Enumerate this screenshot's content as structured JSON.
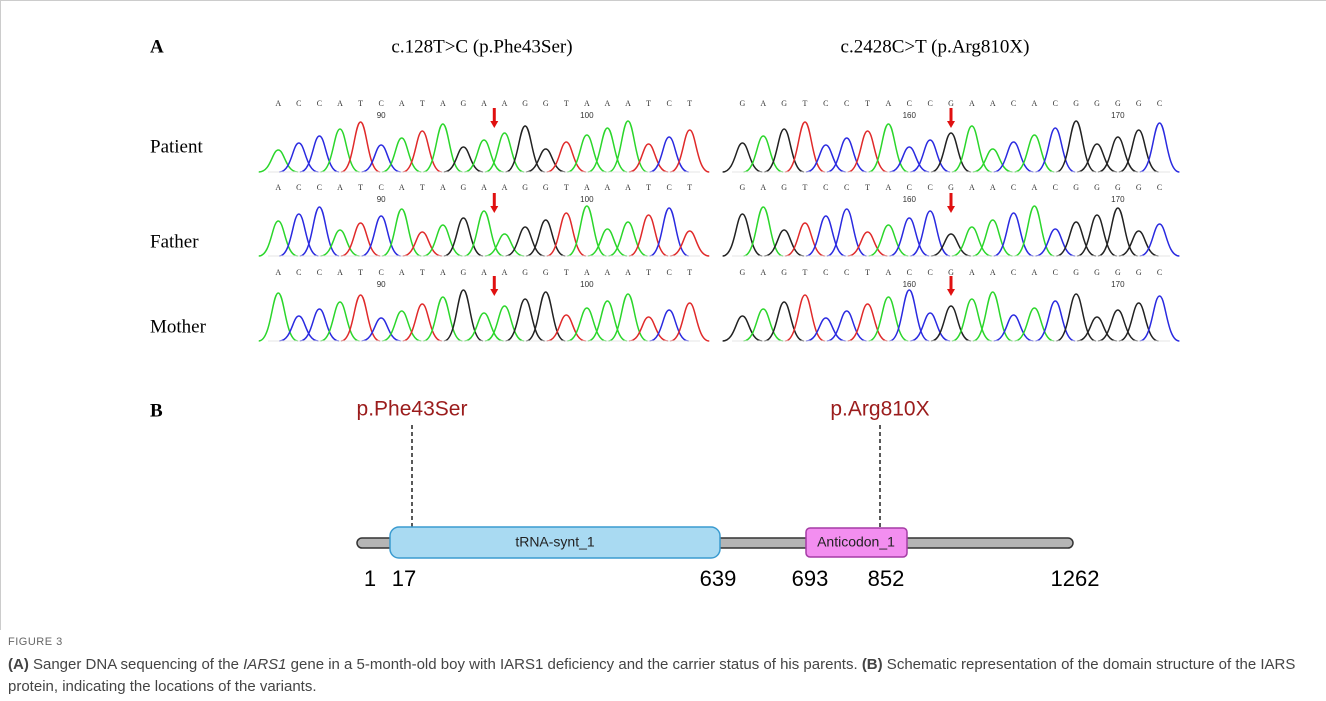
{
  "panel_a": {
    "label": "A",
    "row_labels": [
      "Patient",
      "Father",
      "Mother"
    ],
    "columns": [
      {
        "title": "c.128T>C (p.Phe43Ser)",
        "ticks": [
          "90",
          "100"
        ],
        "rows": [
          {
            "bases": [
              "A",
              "C",
              "C",
              "A",
              "T",
              "C",
              "A",
              "T",
              "A",
              "G",
              "A",
              "A",
              "G",
              "G",
              "T",
              "A",
              "A",
              "A",
              "T",
              "C",
              "T"
            ]
          },
          {
            "bases": [
              "A",
              "C",
              "C",
              "A",
              "T",
              "C",
              "A",
              "T",
              "A",
              "G",
              "A",
              "A",
              "G",
              "G",
              "T",
              "A",
              "A",
              "A",
              "T",
              "C",
              "T"
            ]
          },
          {
            "bases": [
              "A",
              "C",
              "C",
              "A",
              "T",
              "C",
              "A",
              "T",
              "A",
              "G",
              "A",
              "A",
              "G",
              "G",
              "T",
              "A",
              "A",
              "A",
              "T",
              "C",
              "T"
            ]
          }
        ]
      },
      {
        "title": "c.2428C>T (p.Arg810X)",
        "ticks": [
          "160",
          "170"
        ],
        "rows": [
          {
            "bases": [
              "G",
              "A",
              "G",
              "T",
              "C",
              "C",
              "T",
              "A",
              "C",
              "C",
              "G",
              "A",
              "A",
              "C",
              "A",
              "C",
              "G",
              "G",
              "G",
              "G",
              "C"
            ]
          },
          {
            "bases": [
              "G",
              "A",
              "G",
              "T",
              "C",
              "C",
              "T",
              "A",
              "C",
              "C",
              "G",
              "A",
              "A",
              "C",
              "A",
              "C",
              "G",
              "G",
              "G",
              "G",
              "C"
            ]
          },
          {
            "bases": [
              "G",
              "A",
              "G",
              "T",
              "C",
              "C",
              "T",
              "A",
              "C",
              "C",
              "G",
              "A",
              "A",
              "C",
              "A",
              "C",
              "G",
              "G",
              "G",
              "G",
              "C"
            ]
          }
        ]
      }
    ]
  },
  "panel_b": {
    "label": "B",
    "variants": [
      "p.Phe43Ser",
      "p.Arg810X"
    ],
    "domains": [
      "tRNA-synt_1",
      "Anticodon_1"
    ],
    "positions": [
      "1",
      "17",
      "639",
      "693",
      "852",
      "1262"
    ]
  },
  "caption": {
    "figure_label": "FIGURE 3",
    "parts": [
      "(A)",
      " Sanger DNA sequencing of the ",
      "IARS1",
      " gene in a 5-month-old boy with IARS1 deficiency and the carrier status of his parents. ",
      "(B)",
      " Schematic representation of the domain structure of the IARS protein, indicating the locations of the variants."
    ]
  }
}
